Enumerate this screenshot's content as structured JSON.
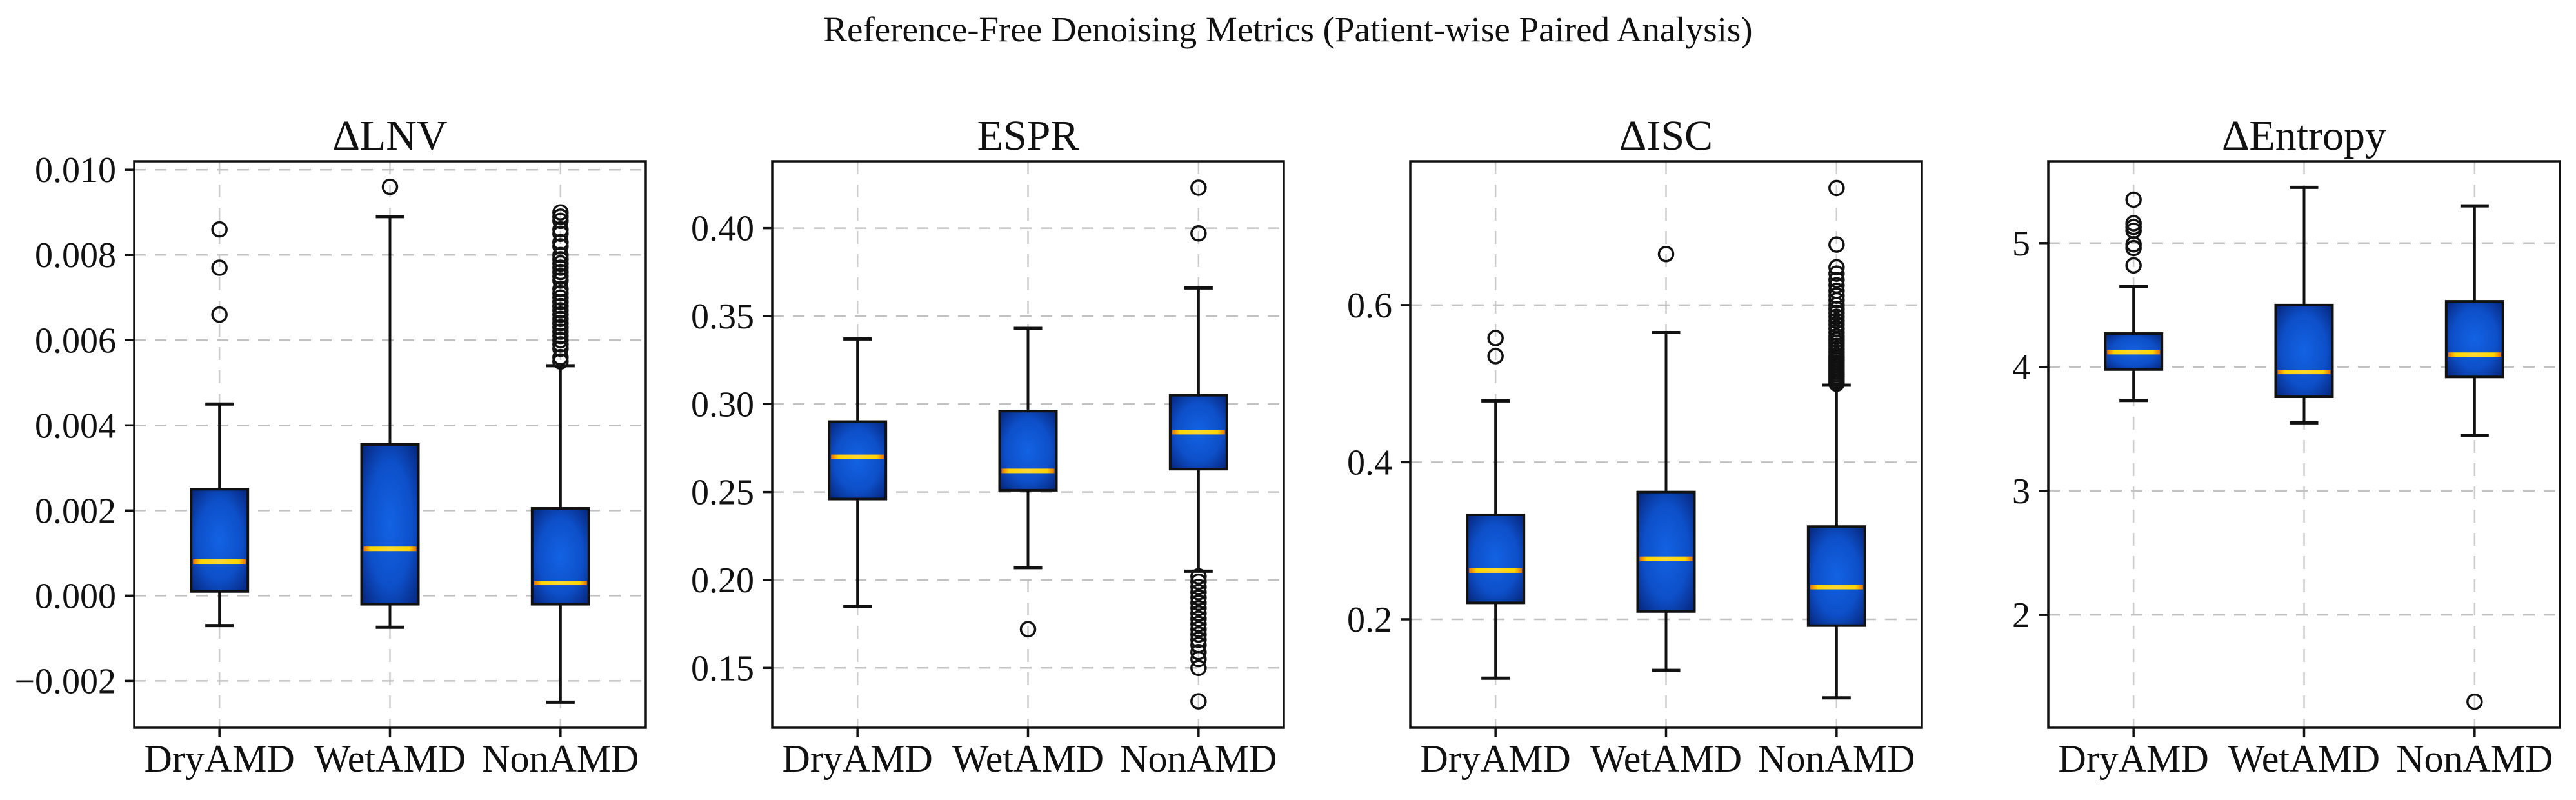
{
  "figure": {
    "suptitle": "Reference-Free Denoising Metrics (Patient-wise Paired Analysis)",
    "background": "#ffffff",
    "colors": {
      "box_fill_center": "#1363e4",
      "box_fill_mid": "#0d4fc8",
      "box_fill_edge": "#062173",
      "median_core": "#ffd82e",
      "median_gold": "#ffd400",
      "median_edge": "#e86f00",
      "line": "#111111",
      "grid_h": "#c2c2c2",
      "grid_v": "#cccccc",
      "text": "#111111"
    }
  },
  "chart_data": [
    {
      "type": "box",
      "title": "ΔLNV",
      "categories": [
        "DryAMD",
        "WetAMD",
        "NonAMD"
      ],
      "ylim": [
        -0.0031,
        0.0102
      ],
      "yticks": [
        -0.002,
        0.0,
        0.002,
        0.004,
        0.006,
        0.008,
        0.01
      ],
      "ytick_labels": [
        "−0.002",
        "0.000",
        "0.002",
        "0.004",
        "0.006",
        "0.008",
        "0.010"
      ],
      "grid": true,
      "boxes": [
        {
          "category": "DryAMD",
          "whislo": -0.0007,
          "q1": 0.0001,
          "med": 0.0008,
          "q3": 0.0025,
          "whishi": 0.0045,
          "outliers": [
            0.0066,
            0.0077,
            0.0086
          ]
        },
        {
          "category": "WetAMD",
          "whislo": -0.00074,
          "q1": -0.0002,
          "med": 0.0011,
          "q3": 0.00355,
          "whishi": 0.0089,
          "outliers": [
            0.0096
          ]
        },
        {
          "category": "NonAMD",
          "whislo": -0.0025,
          "q1": -0.0002,
          "med": 0.0003,
          "q3": 0.00205,
          "whishi": 0.0054,
          "outliers": [
            0.0055,
            0.0056,
            0.0058,
            0.0059,
            0.006,
            0.0061,
            0.0062,
            0.0063,
            0.0064,
            0.0065,
            0.0066,
            0.0067,
            0.0068,
            0.0069,
            0.007,
            0.0071,
            0.0072,
            0.0074,
            0.0075,
            0.0076,
            0.0077,
            0.0078,
            0.0079,
            0.008,
            0.0082,
            0.0083,
            0.0085,
            0.0086,
            0.0088,
            0.0089,
            0.009
          ]
        }
      ]
    },
    {
      "type": "box",
      "title": "ESPR",
      "categories": [
        "DryAMD",
        "WetAMD",
        "NonAMD"
      ],
      "ylim": [
        0.116,
        0.438
      ],
      "yticks": [
        0.15,
        0.2,
        0.25,
        0.3,
        0.35,
        0.4
      ],
      "ytick_labels": [
        "0.15",
        "0.20",
        "0.25",
        "0.30",
        "0.35",
        "0.40"
      ],
      "grid": true,
      "boxes": [
        {
          "category": "DryAMD",
          "whislo": 0.185,
          "q1": 0.246,
          "med": 0.27,
          "q3": 0.29,
          "whishi": 0.337,
          "outliers": []
        },
        {
          "category": "WetAMD",
          "whislo": 0.207,
          "q1": 0.251,
          "med": 0.262,
          "q3": 0.296,
          "whishi": 0.343,
          "outliers": [
            0.172
          ]
        },
        {
          "category": "NonAMD",
          "whislo": 0.205,
          "q1": 0.263,
          "med": 0.284,
          "q3": 0.305,
          "whishi": 0.366,
          "outliers": [
            0.131,
            0.15,
            0.155,
            0.159,
            0.163,
            0.166,
            0.169,
            0.172,
            0.175,
            0.178,
            0.181,
            0.184,
            0.187,
            0.19,
            0.193,
            0.196,
            0.199,
            0.202,
            0.397,
            0.423
          ]
        }
      ]
    },
    {
      "type": "box",
      "title": "ΔISC",
      "categories": [
        "DryAMD",
        "WetAMD",
        "NonAMD"
      ],
      "ylim": [
        0.062,
        0.783
      ],
      "yticks": [
        0.2,
        0.4,
        0.6
      ],
      "ytick_labels": [
        "0.2",
        "0.4",
        "0.6"
      ],
      "grid": true,
      "boxes": [
        {
          "category": "DryAMD",
          "whislo": 0.125,
          "q1": 0.221,
          "med": 0.262,
          "q3": 0.333,
          "whishi": 0.478,
          "outliers": [
            0.535,
            0.558
          ]
        },
        {
          "category": "WetAMD",
          "whislo": 0.135,
          "q1": 0.21,
          "med": 0.277,
          "q3": 0.362,
          "whishi": 0.565,
          "outliers": [
            0.665
          ]
        },
        {
          "category": "NonAMD",
          "whislo": 0.1,
          "q1": 0.192,
          "med": 0.241,
          "q3": 0.318,
          "whishi": 0.498,
          "outliers": [
            0.5,
            0.503,
            0.506,
            0.509,
            0.512,
            0.515,
            0.518,
            0.521,
            0.524,
            0.527,
            0.53,
            0.533,
            0.536,
            0.54,
            0.544,
            0.548,
            0.552,
            0.556,
            0.56,
            0.565,
            0.57,
            0.575,
            0.58,
            0.585,
            0.59,
            0.595,
            0.6,
            0.606,
            0.612,
            0.618,
            0.625,
            0.632,
            0.64,
            0.648,
            0.677,
            0.749
          ]
        }
      ]
    },
    {
      "type": "box",
      "title": "ΔEntropy",
      "categories": [
        "DryAMD",
        "WetAMD",
        "NonAMD"
      ],
      "ylim": [
        1.09,
        5.66
      ],
      "yticks": [
        2,
        3,
        4,
        5
      ],
      "ytick_labels": [
        "2",
        "3",
        "4",
        "5"
      ],
      "grid": true,
      "boxes": [
        {
          "category": "DryAMD",
          "whislo": 3.73,
          "q1": 3.98,
          "med": 4.12,
          "q3": 4.27,
          "whishi": 4.65,
          "outliers": [
            4.82,
            4.96,
            4.99,
            5.1,
            5.13,
            5.16,
            5.35
          ]
        },
        {
          "category": "WetAMD",
          "whislo": 3.55,
          "q1": 3.76,
          "med": 3.96,
          "q3": 4.5,
          "whishi": 5.45,
          "outliers": []
        },
        {
          "category": "NonAMD",
          "whislo": 3.45,
          "q1": 3.92,
          "med": 4.1,
          "q3": 4.53,
          "whishi": 5.3,
          "outliers": [
            1.3
          ]
        }
      ]
    }
  ]
}
